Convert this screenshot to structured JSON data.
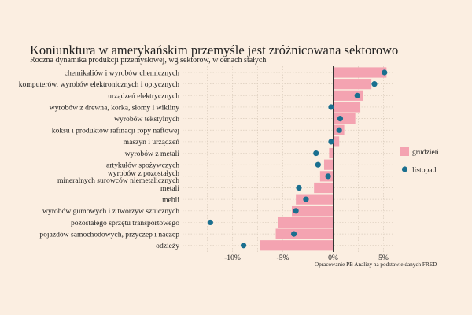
{
  "chart_data": {
    "type": "bar",
    "title": "Koniunktura w amerykańskim przemyśle jest zróżnicowana sektorowo",
    "subtitle": "Roczna dynamika produkcji przemysłowej, wg sektorów, w cenach stałych",
    "source": "Opracowanie PB Analizy na podstawie danych FRED",
    "categories": [
      "chemikaliów i wyrobów chemicznych",
      "komputerów, wyrobów elektronicznych i optycznych",
      "urządzeń elektrycznych",
      "wyrobów z drewna, korka, słomy i wikliny",
      "wyrobów tekstylnych",
      "koksu i produktów rafinacji ropy naftowej",
      "maszyn i urządzeń",
      "wyrobów z metali",
      "artykułów spożywczych",
      "wyrobów z pozostałych\nmineralnych surowców niemetalicznych",
      "metali",
      "mebli",
      "wyrobów gumowych i z tworzyw sztucznych",
      "pozostałego sprzętu transportowego",
      "pojazdów samochodowych, przyczep i naczep",
      "odzieży"
    ],
    "series": [
      {
        "name": "grudzień",
        "mark": "bar",
        "color": "#f4a3b1",
        "values": [
          5.3,
          3.8,
          3.0,
          2.7,
          2.2,
          1.1,
          0.6,
          -0.4,
          -0.9,
          -1.3,
          -1.9,
          -3.7,
          -4.1,
          -5.5,
          -5.7,
          -7.3
        ]
      },
      {
        "name": "listopad",
        "mark": "point",
        "color": "#1a6f8f",
        "values": [
          5.1,
          4.1,
          2.4,
          -0.2,
          0.7,
          0.6,
          -0.2,
          -1.7,
          -1.5,
          -0.5,
          -3.4,
          -2.7,
          -3.7,
          -12.2,
          -3.9,
          -8.9
        ]
      }
    ],
    "xaxis": {
      "ticks": [
        -10,
        -5,
        0,
        5
      ],
      "tick_labels": [
        "-10%",
        "-5%",
        "0%",
        "5%"
      ],
      "range": [
        -13.5,
        6
      ]
    },
    "grid": true,
    "legend": "right"
  }
}
